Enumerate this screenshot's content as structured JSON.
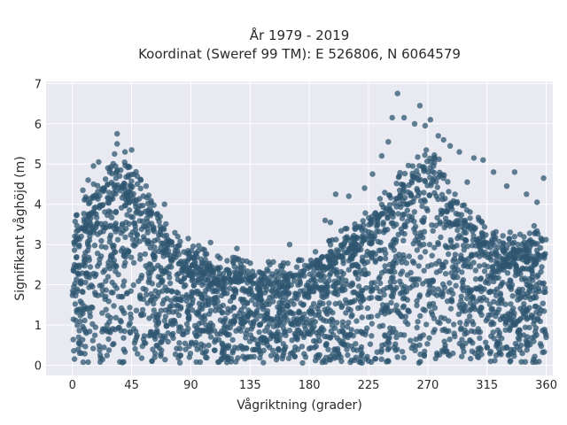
{
  "chart_data": {
    "type": "scatter",
    "title": "År 1979 - 2019",
    "subtitle": "Koordinat (Sweref 99 TM): E 526806, N 6064579",
    "xlabel": "Vågriktning (grader)",
    "ylabel": "Signifikant våghöjd (m)",
    "xlim": [
      -20,
      365
    ],
    "ylim": [
      -0.25,
      7.05
    ],
    "xticks": [
      0,
      45,
      90,
      135,
      180,
      225,
      270,
      315,
      360
    ],
    "yticks": [
      0,
      1,
      2,
      3,
      4,
      5,
      6,
      7
    ],
    "grid": true,
    "background": "#e8e9f1",
    "marker_color": "#2f5670",
    "marker_opacity": 0.75,
    "envelope": {
      "description_x": [
        0,
        10,
        20,
        30,
        35,
        40,
        50,
        60,
        70,
        80,
        90,
        100,
        110,
        120,
        135,
        150,
        165,
        180,
        195,
        210,
        225,
        240,
        255,
        265,
        270,
        280,
        290,
        300,
        315,
        330,
        345,
        360
      ],
      "upper_y": [
        3.3,
        3.9,
        4.4,
        4.7,
        5.0,
        4.8,
        4.5,
        3.8,
        3.3,
        3.0,
        2.8,
        2.6,
        2.5,
        2.4,
        2.3,
        2.3,
        2.3,
        2.5,
        2.8,
        3.2,
        3.6,
        4.2,
        4.7,
        5.0,
        5.1,
        4.8,
        4.0,
        3.6,
        3.2,
        3.0,
        3.1,
        3.3
      ]
    },
    "outliers": [
      {
        "x": 34,
        "y": 5.75
      },
      {
        "x": 34,
        "y": 5.5
      },
      {
        "x": 40,
        "y": 5.3
      },
      {
        "x": 45,
        "y": 5.35
      },
      {
        "x": 20,
        "y": 5.05
      },
      {
        "x": 27,
        "y": 4.9
      },
      {
        "x": 52,
        "y": 4.6
      },
      {
        "x": 70,
        "y": 4.0
      },
      {
        "x": 12,
        "y": 4.6
      },
      {
        "x": 8,
        "y": 4.35
      },
      {
        "x": 247,
        "y": 6.75
      },
      {
        "x": 264,
        "y": 6.45
      },
      {
        "x": 272,
        "y": 6.1
      },
      {
        "x": 268,
        "y": 5.95
      },
      {
        "x": 260,
        "y": 6.0
      },
      {
        "x": 252,
        "y": 6.15
      },
      {
        "x": 243,
        "y": 6.15
      },
      {
        "x": 278,
        "y": 5.7
      },
      {
        "x": 282,
        "y": 5.6
      },
      {
        "x": 287,
        "y": 5.45
      },
      {
        "x": 294,
        "y": 5.3
      },
      {
        "x": 305,
        "y": 5.15
      },
      {
        "x": 312,
        "y": 5.1
      },
      {
        "x": 320,
        "y": 4.8
      },
      {
        "x": 336,
        "y": 4.8
      },
      {
        "x": 358,
        "y": 4.65
      },
      {
        "x": 235,
        "y": 5.2
      },
      {
        "x": 228,
        "y": 4.75
      },
      {
        "x": 222,
        "y": 4.4
      },
      {
        "x": 210,
        "y": 4.2
      },
      {
        "x": 200,
        "y": 4.25
      },
      {
        "x": 196,
        "y": 3.55
      },
      {
        "x": 192,
        "y": 3.6
      },
      {
        "x": 165,
        "y": 3.0
      },
      {
        "x": 150,
        "y": 2.5
      },
      {
        "x": 125,
        "y": 2.9
      },
      {
        "x": 105,
        "y": 3.05
      },
      {
        "x": 88,
        "y": 3.15
      },
      {
        "x": 345,
        "y": 4.25
      },
      {
        "x": 300,
        "y": 4.55
      },
      {
        "x": 16,
        "y": 4.95
      },
      {
        "x": 32,
        "y": 5.25
      },
      {
        "x": 56,
        "y": 4.45
      },
      {
        "x": 64,
        "y": 3.75
      },
      {
        "x": 330,
        "y": 4.45
      },
      {
        "x": 353,
        "y": 4.05
      },
      {
        "x": 240,
        "y": 5.55
      }
    ]
  }
}
